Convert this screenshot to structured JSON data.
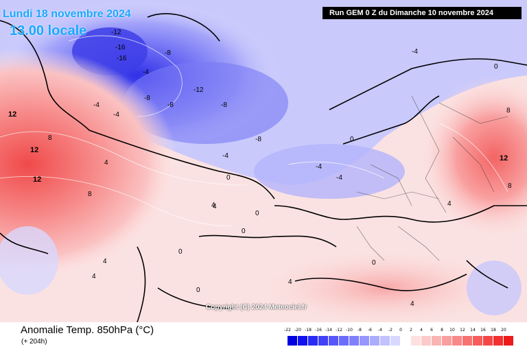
{
  "header": {
    "date_label": "Lundi 18 novembre 2024",
    "time_label": "13.00 locale",
    "run_label": "Run GEM 0 Z du Dimanche 10 novembre 2024"
  },
  "copyright": "Copyright (C) 2024 Meteociel.fr",
  "footer": {
    "title": "Anomalie Temp. 850hPa (°C)",
    "subtitle": "(+ 204h)"
  },
  "legend": {
    "ticks": [
      "-22",
      "-20",
      "-18",
      "-16",
      "-14",
      "-12",
      "-10",
      "-8",
      "-6",
      "-4",
      "-2",
      "0",
      "2",
      "4",
      "6",
      "8",
      "10",
      "12",
      "14",
      "16",
      "18",
      "20"
    ],
    "colors": [
      "#0000e0",
      "#1010f0",
      "#2a2af5",
      "#4040f8",
      "#5656fa",
      "#6c6cfb",
      "#8080fc",
      "#9696fd",
      "#acacfd",
      "#c2c2fe",
      "#d8d8fe",
      "#ffffff",
      "#fde0e0",
      "#fccaca",
      "#fbb4b4",
      "#fa9e9e",
      "#f98888",
      "#f87272",
      "#f65c5c",
      "#f44646",
      "#f23030",
      "#ee1a1a"
    ]
  },
  "map_values": [
    {
      "text": "-12",
      "tone": "cold"
    },
    {
      "text": "-16",
      "tone": "cold"
    },
    {
      "text": "-16",
      "tone": "cold"
    },
    {
      "text": "-8",
      "tone": "cold"
    },
    {
      "text": "-12",
      "tone": "cold"
    },
    {
      "text": "-8",
      "tone": "cold"
    },
    {
      "text": "-8",
      "tone": "cold"
    },
    {
      "text": "-4",
      "tone": "cold"
    },
    {
      "text": "-4",
      "tone": "cold"
    },
    {
      "text": "-8",
      "tone": "cold"
    },
    {
      "text": "-8",
      "tone": "cold"
    },
    {
      "text": "-4",
      "tone": "cold"
    },
    {
      "text": "-4",
      "tone": "cold"
    },
    {
      "text": "-4",
      "tone": "cold"
    },
    {
      "text": "-4",
      "tone": "cold"
    },
    {
      "text": "-4",
      "tone": "cold"
    },
    {
      "text": "0",
      "tone": "neutral"
    },
    {
      "text": "0",
      "tone": "neutral"
    },
    {
      "text": "0",
      "tone": "neutral"
    },
    {
      "text": "0",
      "tone": "neutral"
    },
    {
      "text": "0",
      "tone": "neutral"
    },
    {
      "text": "4",
      "tone": "warm"
    },
    {
      "text": "4",
      "tone": "warm"
    },
    {
      "text": "8",
      "tone": "warm"
    },
    {
      "text": "12",
      "tone": "warm"
    },
    {
      "text": "12",
      "tone": "warm"
    },
    {
      "text": "12",
      "tone": "warm"
    },
    {
      "text": "12",
      "tone": "warm"
    },
    {
      "text": "8",
      "tone": "warm"
    },
    {
      "text": "8",
      "tone": "warm"
    },
    {
      "text": "4",
      "tone": "warm"
    },
    {
      "text": "4",
      "tone": "warm"
    },
    {
      "text": "4",
      "tone": "warm"
    },
    {
      "text": "0",
      "tone": "neutral"
    },
    {
      "text": "4",
      "tone": "warm"
    },
    {
      "text": "8",
      "tone": "warm"
    },
    {
      "text": "4",
      "tone": "warm"
    },
    {
      "text": "0",
      "tone": "neutral"
    },
    {
      "text": "4",
      "tone": "warm"
    },
    {
      "text": "0",
      "tone": "neutral"
    }
  ]
}
